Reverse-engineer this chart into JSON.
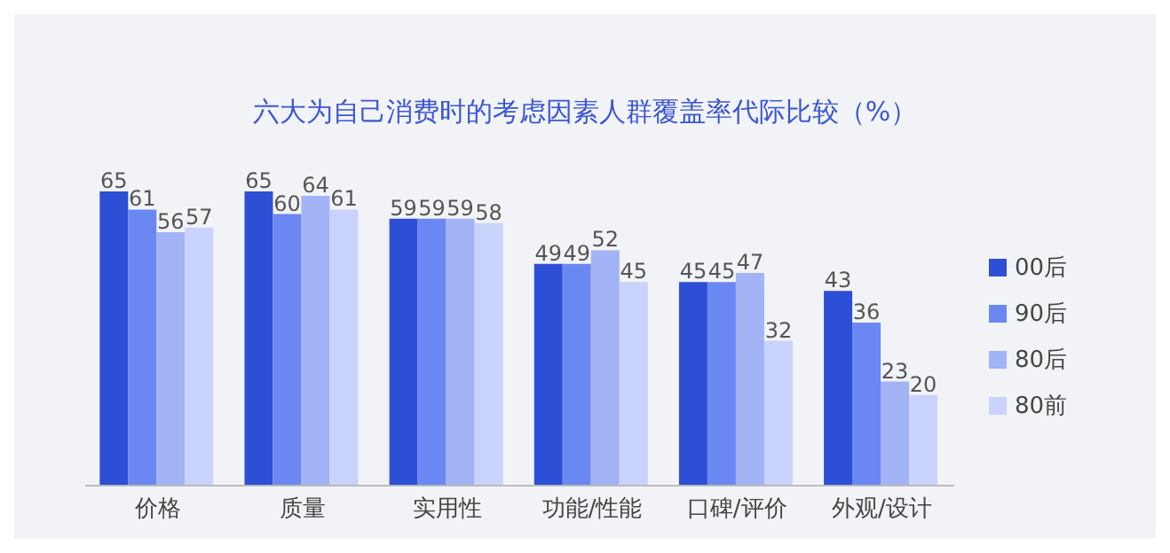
{
  "chart_data": {
    "type": "bar",
    "title": "六大为自己消费时的考虑因素人群覆盖率代际比较（%）",
    "categories": [
      "价格",
      "质量",
      "实用性",
      "功能/性能",
      "口碑/评价",
      "外观/设计"
    ],
    "series": [
      {
        "name": "00后",
        "color": "#2d4fd6",
        "values": [
          65,
          65,
          59,
          49,
          45,
          43
        ]
      },
      {
        "name": "90后",
        "color": "#6b87f2",
        "values": [
          61,
          60,
          59,
          49,
          45,
          36
        ]
      },
      {
        "name": "80后",
        "color": "#a2b3f6",
        "values": [
          56,
          64,
          59,
          52,
          47,
          23
        ]
      },
      {
        "name": "80前",
        "color": "#c9d3fb",
        "values": [
          57,
          61,
          58,
          45,
          32,
          20
        ]
      }
    ],
    "data_labels": true,
    "legend": "right",
    "grid": false
  }
}
